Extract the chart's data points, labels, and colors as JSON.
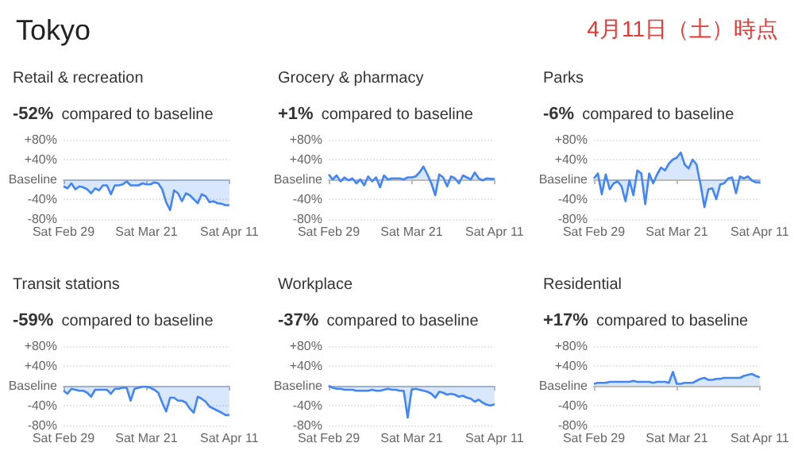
{
  "chart_data": [
    {
      "type": "other",
      "title": "Tokyo",
      "annotations": [
        "4月11日（土）時点"
      ]
    },
    {
      "type": "area",
      "title": "Retail & recreation",
      "annotations": [
        "-52%",
        "compared to baseline"
      ],
      "x": [
        "--02-29",
        "--03-01",
        "--03-02",
        "--03-03",
        "--03-04",
        "--03-05",
        "--03-06",
        "--03-07",
        "--03-08",
        "--03-09",
        "--03-10",
        "--03-11",
        "--03-12",
        "--03-13",
        "--03-14",
        "--03-15",
        "--03-16",
        "--03-17",
        "--03-18",
        "--03-19",
        "--03-20",
        "--03-21",
        "--03-22",
        "--03-23",
        "--03-24",
        "--03-25",
        "--03-26",
        "--03-27",
        "--03-28",
        "--03-29",
        "--03-30",
        "--03-31",
        "--04-01",
        "--04-02",
        "--04-03",
        "--04-04",
        "--04-05",
        "--04-06",
        "--04-07",
        "--04-08",
        "--04-09",
        "--04-10",
        "--04-11"
      ],
      "series": [
        {
          "color": "#4285f4",
          "values": [
            -14,
            -18,
            -8,
            -20,
            -14,
            -16,
            -20,
            -28,
            -18,
            -22,
            -12,
            -12,
            -30,
            -12,
            -12,
            -10,
            -4,
            -12,
            -12,
            -12,
            -8,
            -10,
            -10,
            -6,
            -8,
            -20,
            -46,
            -62,
            -22,
            -28,
            -44,
            -28,
            -32,
            -40,
            -48,
            -30,
            -34,
            -46,
            -44,
            -48,
            -49,
            -52,
            -52
          ]
        }
      ],
      "xlim": [
        "--02-29",
        "--04-11"
      ],
      "xticks": [
        {
          "value": "--02-29",
          "label": "Sat Feb 29"
        },
        {
          "value": "--03-21",
          "label": "Sat Mar 21"
        },
        {
          "value": "--04-11",
          "label": "Sat Apr 11"
        }
      ],
      "ylim": [
        -80,
        80
      ],
      "yticks": [
        {
          "value": -80,
          "label": "-80%"
        },
        {
          "value": -40,
          "label": "-40%"
        },
        {
          "value": 0,
          "label": "Baseline"
        },
        {
          "value": 40,
          "label": "+40%"
        },
        {
          "value": 80,
          "label": "+80%"
        }
      ],
      "grid": "y"
    },
    {
      "type": "area",
      "title": "Grocery & pharmacy",
      "annotations": [
        "+1%",
        "compared to baseline"
      ],
      "x": [
        "--02-29",
        "--03-01",
        "--03-02",
        "--03-03",
        "--03-04",
        "--03-05",
        "--03-06",
        "--03-07",
        "--03-08",
        "--03-09",
        "--03-10",
        "--03-11",
        "--03-12",
        "--03-13",
        "--03-14",
        "--03-15",
        "--03-16",
        "--03-17",
        "--03-18",
        "--03-19",
        "--03-20",
        "--03-21",
        "--03-22",
        "--03-23",
        "--03-24",
        "--03-25",
        "--03-26",
        "--03-27",
        "--03-28",
        "--03-29",
        "--03-30",
        "--03-31",
        "--04-01",
        "--04-02",
        "--04-03",
        "--04-04",
        "--04-05",
        "--04-06",
        "--04-07",
        "--04-08",
        "--04-09",
        "--04-10",
        "--04-11"
      ],
      "series": [
        {
          "color": "#4285f4",
          "values": [
            10,
            0,
            8,
            -4,
            4,
            -2,
            2,
            -8,
            0,
            -12,
            6,
            -4,
            4,
            -16,
            8,
            0,
            2,
            2,
            2,
            0,
            4,
            4,
            6,
            14,
            26,
            10,
            -8,
            -32,
            10,
            4,
            -14,
            6,
            2,
            -8,
            8,
            4,
            0,
            14,
            2,
            -2,
            2,
            1,
            1
          ]
        }
      ],
      "xlim": [
        "--02-29",
        "--04-11"
      ],
      "xticks": [
        {
          "value": "--02-29",
          "label": "Sat Feb 29"
        },
        {
          "value": "--03-21",
          "label": "Sat Mar 21"
        },
        {
          "value": "--04-11",
          "label": "Sat Apr 11"
        }
      ],
      "ylim": [
        -80,
        80
      ],
      "yticks": [
        {
          "value": -80,
          "label": "-80%"
        },
        {
          "value": -40,
          "label": "-40%"
        },
        {
          "value": 0,
          "label": "Baseline"
        },
        {
          "value": 40,
          "label": "+40%"
        },
        {
          "value": 80,
          "label": "+80%"
        }
      ],
      "grid": "y"
    },
    {
      "type": "area",
      "title": "Parks",
      "annotations": [
        "-6%",
        "compared to baseline"
      ],
      "x": [
        "--02-29",
        "--03-01",
        "--03-02",
        "--03-03",
        "--03-04",
        "--03-05",
        "--03-06",
        "--03-07",
        "--03-08",
        "--03-09",
        "--03-10",
        "--03-11",
        "--03-12",
        "--03-13",
        "--03-14",
        "--03-15",
        "--03-16",
        "--03-17",
        "--03-18",
        "--03-19",
        "--03-20",
        "--03-21",
        "--03-22",
        "--03-23",
        "--03-24",
        "--03-25",
        "--03-26",
        "--03-27",
        "--03-28",
        "--03-29",
        "--03-30",
        "--03-31",
        "--04-01",
        "--04-02",
        "--04-03",
        "--04-04",
        "--04-05",
        "--04-06",
        "--04-07",
        "--04-08",
        "--04-09",
        "--04-10",
        "--04-11"
      ],
      "series": [
        {
          "color": "#4285f4",
          "values": [
            2,
            12,
            -30,
            10,
            -20,
            -8,
            -4,
            -14,
            -44,
            -2,
            -32,
            18,
            12,
            -50,
            12,
            -8,
            10,
            24,
            18,
            32,
            40,
            44,
            54,
            30,
            22,
            40,
            30,
            -10,
            -56,
            -20,
            -18,
            -40,
            -10,
            -8,
            2,
            4,
            -28,
            6,
            2,
            6,
            -2,
            -6,
            -6
          ]
        }
      ],
      "xlim": [
        "--02-29",
        "--04-11"
      ],
      "xticks": [
        {
          "value": "--02-29",
          "label": "Sat Feb 29"
        },
        {
          "value": "--03-21",
          "label": "Sat Mar 21"
        },
        {
          "value": "--04-11",
          "label": "Sat Apr 11"
        }
      ],
      "ylim": [
        -80,
        80
      ],
      "yticks": [
        {
          "value": -80,
          "label": "-80%"
        },
        {
          "value": -40,
          "label": "-40%"
        },
        {
          "value": 0,
          "label": "Baseline"
        },
        {
          "value": 40,
          "label": "+40%"
        },
        {
          "value": 80,
          "label": "+80%"
        }
      ],
      "grid": "y"
    },
    {
      "type": "area",
      "title": "Transit stations",
      "annotations": [
        "-59%",
        "compared to baseline"
      ],
      "x": [
        "--02-29",
        "--03-01",
        "--03-02",
        "--03-03",
        "--03-04",
        "--03-05",
        "--03-06",
        "--03-07",
        "--03-08",
        "--03-09",
        "--03-10",
        "--03-11",
        "--03-12",
        "--03-13",
        "--03-14",
        "--03-15",
        "--03-16",
        "--03-17",
        "--03-18",
        "--03-19",
        "--03-20",
        "--03-21",
        "--03-22",
        "--03-23",
        "--03-24",
        "--03-25",
        "--03-26",
        "--03-27",
        "--03-28",
        "--03-29",
        "--03-30",
        "--03-31",
        "--04-01",
        "--04-02",
        "--04-03",
        "--04-04",
        "--04-05",
        "--04-06",
        "--04-07",
        "--04-08",
        "--04-09",
        "--04-10",
        "--04-11"
      ],
      "series": [
        {
          "color": "#4285f4",
          "values": [
            -10,
            -16,
            -6,
            -8,
            -10,
            -10,
            -14,
            -22,
            -8,
            -8,
            -8,
            -8,
            -16,
            -6,
            -6,
            -4,
            -4,
            -30,
            -6,
            -4,
            -2,
            -2,
            -4,
            -8,
            -14,
            -34,
            -52,
            -24,
            -24,
            -30,
            -30,
            -34,
            -46,
            -54,
            -22,
            -26,
            -32,
            -42,
            -46,
            -50,
            -54,
            -59,
            -59
          ]
        }
      ],
      "xlim": [
        "--02-29",
        "--04-11"
      ],
      "xticks": [
        {
          "value": "--02-29",
          "label": "Sat Feb 29"
        },
        {
          "value": "--03-21",
          "label": "Sat Mar 21"
        },
        {
          "value": "--04-11",
          "label": "Sat Apr 11"
        }
      ],
      "ylim": [
        -80,
        80
      ],
      "yticks": [
        {
          "value": -80,
          "label": "-80%"
        },
        {
          "value": -40,
          "label": "-40%"
        },
        {
          "value": 0,
          "label": "Baseline"
        },
        {
          "value": 40,
          "label": "+40%"
        },
        {
          "value": 80,
          "label": "+80%"
        }
      ],
      "grid": "y"
    },
    {
      "type": "area",
      "title": "Workplace",
      "annotations": [
        "-37%",
        "compared to baseline"
      ],
      "x": [
        "--02-29",
        "--03-01",
        "--03-02",
        "--03-03",
        "--03-04",
        "--03-05",
        "--03-06",
        "--03-07",
        "--03-08",
        "--03-09",
        "--03-10",
        "--03-11",
        "--03-12",
        "--03-13",
        "--03-14",
        "--03-15",
        "--03-16",
        "--03-17",
        "--03-18",
        "--03-19",
        "--03-20",
        "--03-21",
        "--03-22",
        "--03-23",
        "--03-24",
        "--03-25",
        "--03-26",
        "--03-27",
        "--03-28",
        "--03-29",
        "--03-30",
        "--03-31",
        "--04-01",
        "--04-02",
        "--04-03",
        "--04-04",
        "--04-05",
        "--04-06",
        "--04-07",
        "--04-08",
        "--04-09",
        "--04-10",
        "--04-11"
      ],
      "series": [
        {
          "color": "#4285f4",
          "values": [
            0,
            -4,
            -6,
            -6,
            -8,
            -8,
            -8,
            -10,
            -10,
            -10,
            -10,
            -8,
            -10,
            -10,
            -8,
            -6,
            -8,
            -8,
            -10,
            -10,
            -64,
            -8,
            -6,
            -8,
            -10,
            -12,
            -16,
            -24,
            -12,
            -14,
            -18,
            -16,
            -18,
            -22,
            -20,
            -24,
            -26,
            -32,
            -28,
            -34,
            -38,
            -40,
            -37
          ]
        }
      ],
      "xlim": [
        "--02-29",
        "--04-11"
      ],
      "xticks": [
        {
          "value": "--02-29",
          "label": "Sat Feb 29"
        },
        {
          "value": "--03-21",
          "label": "Sat Mar 21"
        },
        {
          "value": "--04-11",
          "label": "Sat Apr 11"
        }
      ],
      "ylim": [
        -80,
        80
      ],
      "yticks": [
        {
          "value": -80,
          "label": "-80%"
        },
        {
          "value": -40,
          "label": "-40%"
        },
        {
          "value": 0,
          "label": "Baseline"
        },
        {
          "value": 40,
          "label": "+40%"
        },
        {
          "value": 80,
          "label": "+80%"
        }
      ],
      "grid": "y"
    },
    {
      "type": "area",
      "title": "Residential",
      "annotations": [
        "+17%",
        "compared to baseline"
      ],
      "x": [
        "--02-29",
        "--03-01",
        "--03-02",
        "--03-03",
        "--03-04",
        "--03-05",
        "--03-06",
        "--03-07",
        "--03-08",
        "--03-09",
        "--03-10",
        "--03-11",
        "--03-12",
        "--03-13",
        "--03-14",
        "--03-15",
        "--03-16",
        "--03-17",
        "--03-18",
        "--03-19",
        "--03-20",
        "--03-21",
        "--03-22",
        "--03-23",
        "--03-24",
        "--03-25",
        "--03-26",
        "--03-27",
        "--03-28",
        "--03-29",
        "--03-30",
        "--03-31",
        "--04-01",
        "--04-02",
        "--04-03",
        "--04-04",
        "--04-05",
        "--04-06",
        "--04-07",
        "--04-08",
        "--04-09",
        "--04-10",
        "--04-11"
      ],
      "series": [
        {
          "color": "#4285f4",
          "values": [
            4,
            6,
            6,
            6,
            8,
            8,
            8,
            8,
            8,
            8,
            10,
            8,
            8,
            8,
            8,
            6,
            8,
            8,
            8,
            6,
            28,
            4,
            4,
            6,
            6,
            6,
            10,
            14,
            16,
            12,
            12,
            14,
            14,
            16,
            16,
            16,
            16,
            16,
            20,
            22,
            24,
            20,
            17
          ]
        }
      ],
      "xlim": [
        "--02-29",
        "--04-11"
      ],
      "xticks": [
        {
          "value": "--02-29",
          "label": "Sat Feb 29"
        },
        {
          "value": "--03-21",
          "label": "Sat Mar 21"
        },
        {
          "value": "--04-11",
          "label": "Sat Apr 11"
        }
      ],
      "ylim": [
        -80,
        80
      ],
      "yticks": [
        {
          "value": -80,
          "label": "-80%"
        },
        {
          "value": -40,
          "label": "-40%"
        },
        {
          "value": 0,
          "label": "Baseline"
        },
        {
          "value": 40,
          "label": "+40%"
        },
        {
          "value": 80,
          "label": "+80%"
        }
      ],
      "grid": "y"
    }
  ]
}
